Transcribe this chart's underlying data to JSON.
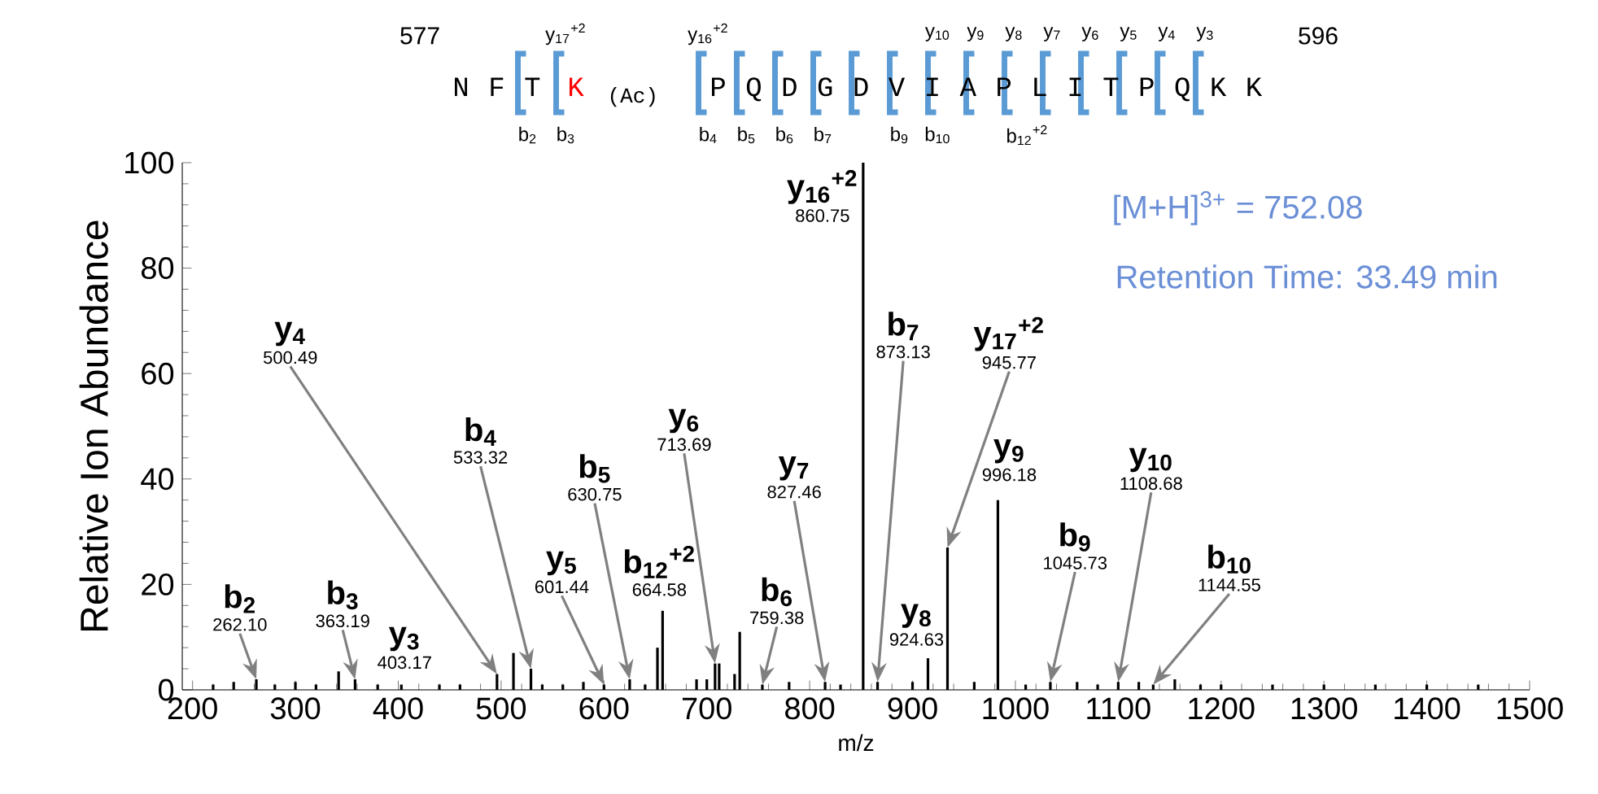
{
  "chart_data": {
    "type": "bar",
    "xlabel": "m/z",
    "ylabel": "Relative Ion Abundance",
    "color": "#000000",
    "x": [
      220,
      240,
      262,
      280,
      300,
      320,
      342,
      358,
      380,
      403,
      440,
      460,
      496,
      512,
      529,
      540,
      560,
      580,
      600,
      625,
      640,
      652,
      657,
      690,
      700,
      708,
      712,
      727,
      732,
      754,
      780,
      815,
      830,
      852,
      866,
      900,
      915,
      934,
      960,
      983,
      1010,
      1034,
      1060,
      1080,
      1100,
      1120,
      1134,
      1155,
      1180,
      1200,
      1250,
      1300,
      1350,
      1400,
      1450
    ],
    "values": [
      1,
      1.5,
      2,
      1,
      1.5,
      1,
      3.5,
      2,
      1,
      1,
      1,
      1,
      3,
      7,
      4,
      1,
      1,
      1.5,
      1,
      2,
      1,
      8,
      15,
      2,
      2,
      5,
      5,
      3,
      11,
      1,
      1.5,
      1.5,
      1,
      100,
      1.5,
      1.5,
      6,
      27,
      1.5,
      36,
      1,
      1.5,
      1.5,
      1,
      1.5,
      1.5,
      1,
      2,
      1,
      1,
      1,
      1,
      1,
      1,
      1
    ],
    "xlim": [
      190,
      1500
    ],
    "ylim": [
      0,
      100
    ],
    "xticks": [
      200,
      300,
      400,
      500,
      600,
      700,
      800,
      900,
      1000,
      1100,
      1200,
      1300,
      1400,
      1500
    ],
    "yticks": [
      0,
      20,
      40,
      60,
      80,
      100
    ],
    "annotations": [
      {
        "text": "b$_{2}$",
        "x": 262,
        "y": 2
      },
      "262.10",
      {
        "text": "b$_{3}$",
        "x": 358,
        "y": 2
      },
      "363.19",
      {
        "text": "y$_{3}$",
        "x": 403,
        "y": 1
      },
      "403.17",
      {
        "text": "y$_{4}$",
        "x": 496,
        "y": 3
      },
      "500.49",
      {
        "text": "b$_{4}$",
        "x": 529,
        "y": 4
      },
      "533.32",
      {
        "text": "b$_{5}$",
        "x": 625,
        "y": 2
      },
      "630.75",
      {
        "text": "y$_{5}$",
        "x": 600,
        "y": 1
      },
      "601.44",
      {
        "text": "b$_{12}$$^{+2}$",
        "x": 657,
        "y": 15
      },
      "664.58",
      {
        "text": "y$_{6}$",
        "x": 708,
        "y": 5
      },
      "713.69",
      {
        "text": "b$_{6}$",
        "x": 754,
        "y": 1
      },
      "759.38",
      {
        "text": "y$_{7}$",
        "x": 815,
        "y": 1.5
      },
      "827.46",
      {
        "text": "y$_{16}$$^{+2}$",
        "x": 852,
        "y": 100
      },
      "860.75",
      {
        "text": "b$_{7}$",
        "x": 866,
        "y": 1.5
      },
      "873.13",
      {
        "text": "y$_{8}$",
        "x": 915,
        "y": 6
      },
      "924.63",
      {
        "text": "y$_{17}$$^{+2}$",
        "x": 934,
        "y": 27
      },
      "945.77",
      {
        "text": "y$_{9}$",
        "x": 983,
        "y": 36
      },
      "996.18",
      {
        "text": "b$_{9}$",
        "x": 1034,
        "y": 1.5
      },
      "1045.73",
      {
        "text": "y$_{10}$",
        "x": 1100,
        "y": 1.5
      },
      "1108.68",
      {
        "text": "b$_{10}$",
        "x": 1134,
        "y": 1
      },
      "1144.55",
      "[M+H]$^{3+}$ = 752.08",
      "Retention Time: 33.49 min",
      "577",
      "596",
      "N F T",
      "K",
      "(Ac)",
      "P Q D G D V I A P L I T P Q K K",
      "y$_{17}$$^{+2}$",
      "y$_{16}$$^{+2}$",
      "y$_{10}$",
      "y$_{9}$",
      "y$_{8}$",
      "y$_{7}$",
      "y$_{6}$",
      "y$_{5}$",
      "y$_{4}$",
      "y$_{3}$",
      "b$_{2}$",
      "b$_{3}$",
      "b$_{4}$",
      "b$_{5}$",
      "b$_{6}$",
      "b$_{7}$",
      "b$_{9}$",
      "b$_{10}$",
      "b$_{12}$$^{+2}$"
    ]
  }
}
